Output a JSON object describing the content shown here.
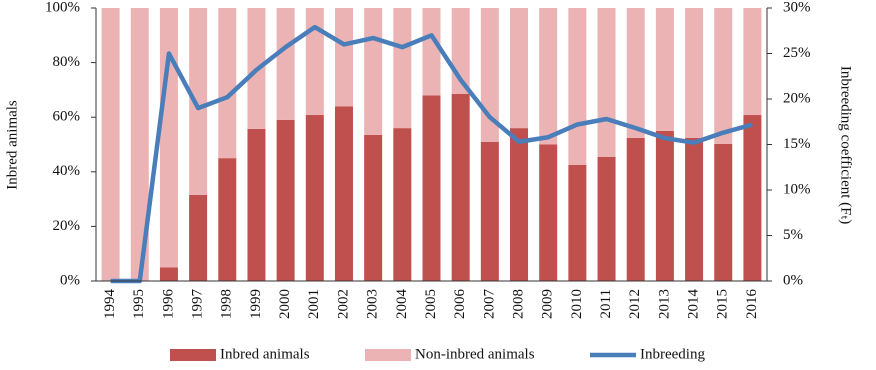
{
  "chart_data": {
    "type": "bar",
    "stacked": true,
    "y_label": "Inbred animals",
    "y2_label": "Inbreeding coefficient (Fₜ)",
    "categories": [
      "1994",
      "1995",
      "1996",
      "1997",
      "1998",
      "1999",
      "2000",
      "2001",
      "2002",
      "2003",
      "2004",
      "2005",
      "2006",
      "2007",
      "2008",
      "2009",
      "2010",
      "2011",
      "2012",
      "2013",
      "2014",
      "2015",
      "2016"
    ],
    "series": [
      {
        "name": "Inbred animals",
        "type": "bar",
        "color": "#c0504d",
        "values": [
          0,
          0,
          5,
          31.5,
          45,
          55.7,
          59,
          60.8,
          64,
          53.5,
          56,
          68,
          68.5,
          51,
          56,
          50,
          42.5,
          45.5,
          52.4,
          55,
          52.4,
          50.2,
          60.8
        ]
      },
      {
        "name": "Non-inbred animals",
        "type": "bar",
        "color": "#ebb3b3",
        "values": [
          100,
          100,
          95,
          68.5,
          55,
          44.3,
          41,
          39.2,
          36,
          46.5,
          44,
          32,
          31.5,
          49,
          44,
          50,
          57.5,
          54.5,
          47.6,
          45,
          47.6,
          49.8,
          39.2
        ]
      },
      {
        "name": "Inbreeding",
        "type": "line",
        "axis": "y2",
        "color": "#4a7ebb",
        "values": [
          0,
          0,
          25,
          19,
          20.2,
          23.2,
          25.7,
          27.9,
          26,
          26.7,
          25.7,
          27,
          22.1,
          18,
          15.3,
          15.8,
          17.2,
          17.8,
          16.8,
          15.7,
          15.2,
          16.3,
          17.2
        ]
      }
    ],
    "ylim": [
      0,
      100
    ],
    "yticks": [
      {
        "value": 0,
        "label": "0%"
      },
      {
        "value": 20,
        "label": "20%"
      },
      {
        "value": 40,
        "label": "40%"
      },
      {
        "value": 60,
        "label": "60%"
      },
      {
        "value": 80,
        "label": "80%"
      },
      {
        "value": 100,
        "label": "100%"
      }
    ],
    "y2lim": [
      0,
      30
    ],
    "y2ticks": [
      {
        "value": 0,
        "label": "0%"
      },
      {
        "value": 5,
        "label": "5%"
      },
      {
        "value": 10,
        "label": "10%"
      },
      {
        "value": 15,
        "label": "15%"
      },
      {
        "value": 20,
        "label": "20%"
      },
      {
        "value": 25,
        "label": "25%"
      },
      {
        "value": 30,
        "label": "30%"
      }
    ],
    "legend": "bottom"
  }
}
